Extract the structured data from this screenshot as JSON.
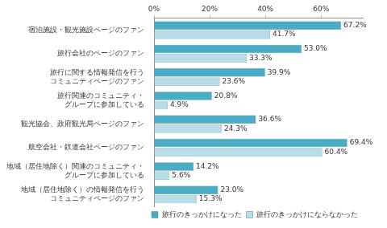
{
  "chart_data": {
    "type": "bar",
    "orientation": "horizontal",
    "categories": [
      [
        "宿泊施設・観光施設ページのファン"
      ],
      [
        "旅行会社のページのファン"
      ],
      [
        "旅行に関する情報発信を行う",
        "コミュニティページのファン"
      ],
      [
        "旅行関連のコミュニティ・",
        "グループに参加している"
      ],
      [
        "観光協会、政府観光局ページのファン"
      ],
      [
        "航空会社・鉄道会社ページのファン"
      ],
      [
        "地域（居住地除く）関連のコミュニティ・",
        "グループに参加している"
      ],
      [
        "地域（居住地除く）の情報発信を行う",
        "コミュニティページのファン"
      ]
    ],
    "series": [
      {
        "name": "旅行のきっかけになった",
        "color": "#4bacc6",
        "values": [
          67.2,
          53.0,
          39.9,
          20.8,
          36.6,
          69.4,
          14.2,
          23.0
        ],
        "value_labels": [
          "67.2%",
          "53.0%",
          "39.9%",
          "20.8%",
          "36.6%",
          "69.4%",
          "14.2%",
          "23.0%"
        ]
      },
      {
        "name": "旅行のきっかけにならなかった",
        "color": "#b7dee8",
        "values": [
          41.7,
          33.3,
          23.6,
          4.9,
          24.3,
          60.4,
          5.6,
          15.3
        ],
        "value_labels": [
          "41.7%",
          "33.3%",
          "23.6%",
          "4.9%",
          "24.3%",
          "60.4%",
          "5.6%",
          "15.3%"
        ]
      }
    ],
    "xlim": [
      0,
      75
    ],
    "xticks": [
      {
        "value": 0,
        "label": "0%"
      },
      {
        "value": 20,
        "label": "20%"
      },
      {
        "value": 40,
        "label": "40%"
      },
      {
        "value": 60,
        "label": "60%"
      }
    ],
    "grid": false,
    "legend": "lower right",
    "data_labels": true
  }
}
